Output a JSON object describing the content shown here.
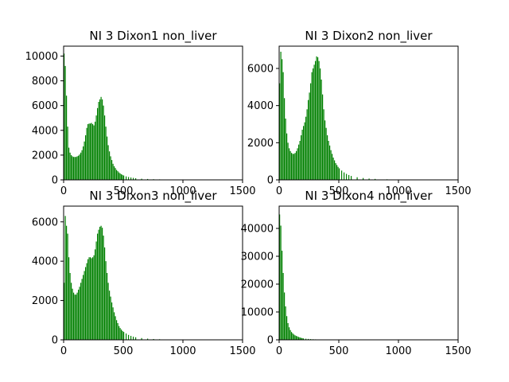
{
  "chart_data": [
    {
      "type": "bar",
      "title": "NI 3 Dixon1 non_liver",
      "xlabel": "",
      "ylabel": "",
      "xlim": [
        0,
        1500
      ],
      "ylim": [
        0,
        10800
      ],
      "xticks": [
        0,
        500,
        1000,
        1500
      ],
      "yticks": [
        0,
        2000,
        4000,
        6000,
        8000,
        10000
      ],
      "bar_color": "#008000",
      "x": [
        0,
        10,
        20,
        30,
        40,
        50,
        60,
        70,
        80,
        90,
        100,
        110,
        120,
        130,
        140,
        150,
        160,
        170,
        180,
        190,
        200,
        210,
        220,
        230,
        240,
        250,
        260,
        270,
        280,
        290,
        300,
        310,
        320,
        330,
        340,
        350,
        360,
        370,
        380,
        390,
        400,
        410,
        420,
        430,
        440,
        450,
        460,
        470,
        480,
        490,
        500,
        520,
        540,
        560,
        580,
        600,
        650,
        700,
        750,
        800,
        900,
        1000,
        1100,
        1200,
        1300,
        1400,
        1500
      ],
      "values": [
        10200,
        9200,
        6800,
        4300,
        2600,
        2200,
        2000,
        1900,
        1850,
        1850,
        1850,
        1900,
        1950,
        2050,
        2200,
        2400,
        2700,
        3100,
        3600,
        4200,
        4500,
        4550,
        4550,
        4600,
        4500,
        4400,
        4700,
        5200,
        5800,
        6300,
        6500,
        6700,
        6500,
        6000,
        5200,
        4300,
        3500,
        2800,
        2300,
        1900,
        1600,
        1300,
        1100,
        950,
        800,
        700,
        600,
        520,
        450,
        400,
        350,
        280,
        230,
        190,
        160,
        130,
        90,
        70,
        50,
        40,
        30,
        20,
        15,
        10,
        8,
        5,
        3
      ]
    },
    {
      "type": "bar",
      "title": "NI 3 Dixon2 non_liver",
      "xlabel": "",
      "ylabel": "",
      "xlim": [
        0,
        1500
      ],
      "ylim": [
        0,
        7200
      ],
      "xticks": [
        0,
        500,
        1000,
        1500
      ],
      "yticks": [
        0,
        2000,
        4000,
        6000
      ],
      "bar_color": "#008000",
      "x": [
        0,
        10,
        20,
        30,
        40,
        50,
        60,
        70,
        80,
        90,
        100,
        110,
        120,
        130,
        140,
        150,
        160,
        170,
        180,
        190,
        200,
        210,
        220,
        230,
        240,
        250,
        260,
        270,
        280,
        290,
        300,
        310,
        320,
        330,
        340,
        350,
        360,
        370,
        380,
        390,
        400,
        410,
        420,
        430,
        440,
        450,
        460,
        470,
        480,
        490,
        500,
        520,
        540,
        560,
        580,
        600,
        650,
        700,
        750,
        800,
        900,
        1000,
        1100,
        1200,
        1300,
        1400,
        1500
      ],
      "values": [
        5200,
        6900,
        6500,
        5800,
        4400,
        3300,
        2500,
        2000,
        1700,
        1550,
        1450,
        1400,
        1400,
        1450,
        1550,
        1700,
        1900,
        2100,
        2400,
        2700,
        2900,
        3100,
        3400,
        3800,
        4300,
        4700,
        5200,
        5800,
        6000,
        6200,
        6400,
        6650,
        6600,
        6400,
        6000,
        5400,
        4600,
        3800,
        3200,
        2800,
        2400,
        2100,
        1850,
        1600,
        1400,
        1200,
        1050,
        900,
        800,
        700,
        620,
        500,
        400,
        320,
        260,
        210,
        140,
        100,
        70,
        50,
        30,
        20,
        12,
        8,
        5,
        3,
        2
      ]
    },
    {
      "type": "bar",
      "title": "NI 3 Dixon3 non_liver",
      "xlabel": "",
      "ylabel": "",
      "xlim": [
        0,
        1500
      ],
      "ylim": [
        0,
        6800
      ],
      "xticks": [
        0,
        500,
        1000,
        1500
      ],
      "yticks": [
        0,
        2000,
        4000,
        6000
      ],
      "bar_color": "#008000",
      "x": [
        0,
        10,
        20,
        30,
        40,
        50,
        60,
        70,
        80,
        90,
        100,
        110,
        120,
        130,
        140,
        150,
        160,
        170,
        180,
        190,
        200,
        210,
        220,
        230,
        240,
        250,
        260,
        270,
        280,
        290,
        300,
        310,
        320,
        330,
        340,
        350,
        360,
        370,
        380,
        390,
        400,
        410,
        420,
        430,
        440,
        450,
        460,
        470,
        480,
        490,
        500,
        520,
        540,
        560,
        580,
        600,
        650,
        700,
        750,
        800,
        900,
        1000,
        1100,
        1200,
        1300,
        1400,
        1500
      ],
      "values": [
        2900,
        6300,
        5800,
        5400,
        4200,
        3400,
        2900,
        2600,
        2400,
        2300,
        2300,
        2400,
        2550,
        2700,
        2900,
        3100,
        3300,
        3500,
        3700,
        3900,
        4100,
        4200,
        4200,
        4150,
        4200,
        4300,
        4600,
        5000,
        5400,
        5600,
        5750,
        5800,
        5700,
        5300,
        4700,
        4000,
        3400,
        2900,
        2500,
        2200,
        1900,
        1650,
        1400,
        1200,
        1000,
        850,
        700,
        600,
        520,
        450,
        400,
        320,
        250,
        200,
        160,
        130,
        90,
        60,
        40,
        30,
        20,
        15,
        10,
        8,
        5,
        3,
        2
      ]
    },
    {
      "type": "bar",
      "title": "NI 3 Dixon4 non_liver",
      "xlabel": "",
      "ylabel": "",
      "xlim": [
        0,
        1500
      ],
      "ylim": [
        0,
        48000
      ],
      "xticks": [
        0,
        500,
        1000,
        1500
      ],
      "yticks": [
        0,
        10000,
        20000,
        30000,
        40000
      ],
      "bar_color": "#008000",
      "x": [
        0,
        10,
        20,
        30,
        40,
        50,
        60,
        70,
        80,
        90,
        100,
        110,
        120,
        130,
        140,
        150,
        160,
        170,
        180,
        190,
        200,
        220,
        240,
        260,
        280,
        300,
        350,
        400,
        450,
        500,
        600,
        700,
        800,
        1000,
        1200,
        1500
      ],
      "values": [
        45000,
        41000,
        32000,
        24000,
        17000,
        12000,
        8500,
        6000,
        4500,
        3500,
        2800,
        2300,
        1900,
        1600,
        1400,
        1200,
        1000,
        850,
        700,
        600,
        500,
        400,
        320,
        260,
        200,
        160,
        100,
        60,
        40,
        25,
        12,
        6,
        3,
        1,
        0,
        0
      ]
    }
  ]
}
